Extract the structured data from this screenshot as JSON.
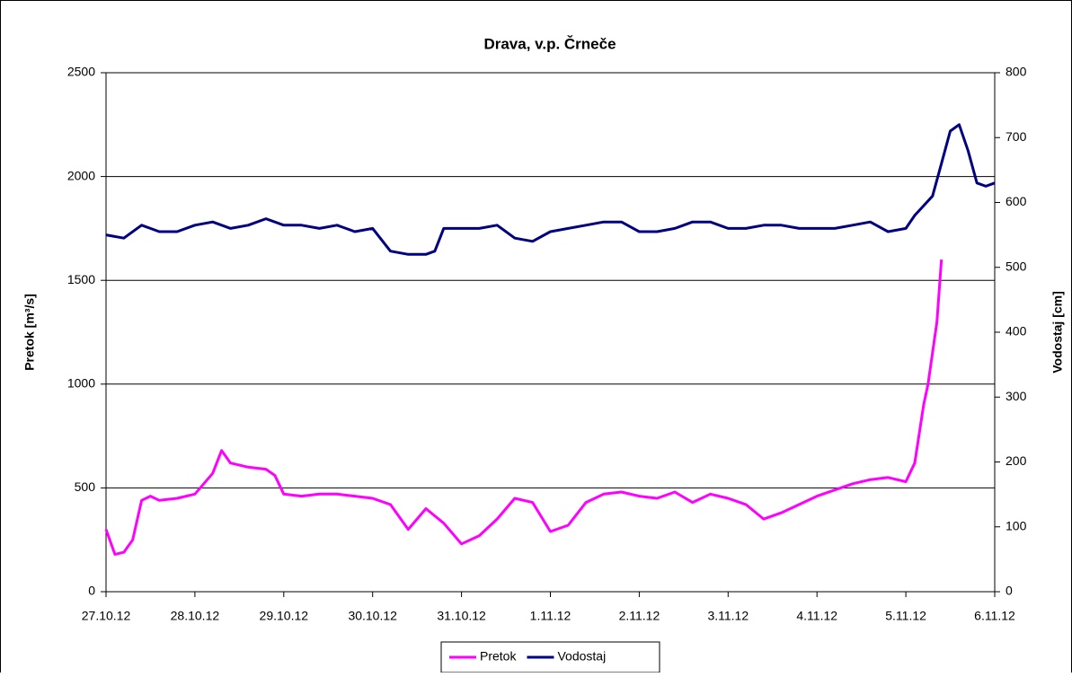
{
  "chart_data": {
    "type": "line",
    "title": "Drava, v.p. Črneče",
    "y_label": "Pretok [m³/s]",
    "y2_label": "Vodostaj [cm]",
    "xlim": [
      0,
      10
    ],
    "xticks": [
      {
        "value": 0,
        "label": "27.10.12"
      },
      {
        "value": 1,
        "label": "28.10.12"
      },
      {
        "value": 2,
        "label": "29.10.12"
      },
      {
        "value": 3,
        "label": "30.10.12"
      },
      {
        "value": 4,
        "label": "31.10.12"
      },
      {
        "value": 5,
        "label": "1.11.12"
      },
      {
        "value": 6,
        "label": "2.11.12"
      },
      {
        "value": 7,
        "label": "3.11.12"
      },
      {
        "value": 8,
        "label": "4.11.12"
      },
      {
        "value": 9,
        "label": "5.11.12"
      },
      {
        "value": 10,
        "label": "6.11.12"
      }
    ],
    "ylim": [
      0,
      2500
    ],
    "yticks": [
      0,
      500,
      1000,
      1500,
      2000,
      2500
    ],
    "y2lim": [
      0,
      800
    ],
    "y2ticks": [
      0,
      100,
      200,
      300,
      400,
      500,
      600,
      700,
      800
    ],
    "grid": true,
    "legend": "bottom",
    "series": [
      {
        "name": "Pretok",
        "color": "#ff00ff",
        "x": [
          0,
          0.1,
          0.2,
          0.3,
          0.4,
          0.5,
          0.6,
          0.8,
          1.0,
          1.2,
          1.3,
          1.4,
          1.6,
          1.8,
          1.9,
          2.0,
          2.2,
          2.4,
          2.6,
          2.8,
          3.0,
          3.2,
          3.4,
          3.6,
          3.8,
          4.0,
          4.2,
          4.4,
          4.6,
          4.8,
          5.0,
          5.2,
          5.4,
          5.6,
          5.8,
          6.0,
          6.2,
          6.4,
          6.6,
          6.8,
          7.0,
          7.2,
          7.4,
          7.6,
          7.8,
          8.0,
          8.2,
          8.4,
          8.6,
          8.8,
          9.0,
          9.1,
          9.2,
          9.25,
          9.35,
          9.4
        ],
        "values": [
          300,
          180,
          190,
          250,
          440,
          460,
          440,
          450,
          470,
          570,
          680,
          620,
          600,
          590,
          560,
          470,
          460,
          470,
          470,
          460,
          450,
          420,
          300,
          400,
          330,
          230,
          270,
          350,
          450,
          430,
          290,
          320,
          430,
          470,
          480,
          460,
          450,
          480,
          430,
          470,
          450,
          420,
          350,
          380,
          420,
          460,
          490,
          520,
          540,
          550,
          530,
          620,
          900,
          1000,
          1300,
          1600
        ]
      },
      {
        "name": "Vodostaj",
        "color": "#000080",
        "axis": "y2",
        "x": [
          0,
          0.2,
          0.4,
          0.5,
          0.6,
          0.8,
          1.0,
          1.2,
          1.4,
          1.6,
          1.8,
          2.0,
          2.2,
          2.4,
          2.6,
          2.8,
          3.0,
          3.2,
          3.4,
          3.6,
          3.7,
          3.8,
          4.0,
          4.2,
          4.4,
          4.6,
          4.8,
          5.0,
          5.2,
          5.4,
          5.6,
          5.8,
          6.0,
          6.2,
          6.4,
          6.6,
          6.8,
          7.0,
          7.2,
          7.4,
          7.6,
          7.8,
          8.0,
          8.2,
          8.4,
          8.6,
          8.8,
          9.0,
          9.1,
          9.2,
          9.3,
          9.4,
          9.5,
          9.6,
          9.7,
          9.8,
          9.9,
          10.0
        ],
        "values": [
          550,
          545,
          565,
          560,
          555,
          555,
          565,
          570,
          560,
          565,
          575,
          565,
          565,
          560,
          565,
          555,
          560,
          525,
          520,
          520,
          525,
          560,
          560,
          560,
          565,
          545,
          540,
          555,
          560,
          565,
          570,
          570,
          555,
          555,
          560,
          570,
          570,
          560,
          560,
          565,
          565,
          560,
          560,
          560,
          565,
          570,
          555,
          560,
          580,
          595,
          610,
          660,
          710,
          720,
          680,
          630,
          625,
          630
        ]
      }
    ]
  }
}
